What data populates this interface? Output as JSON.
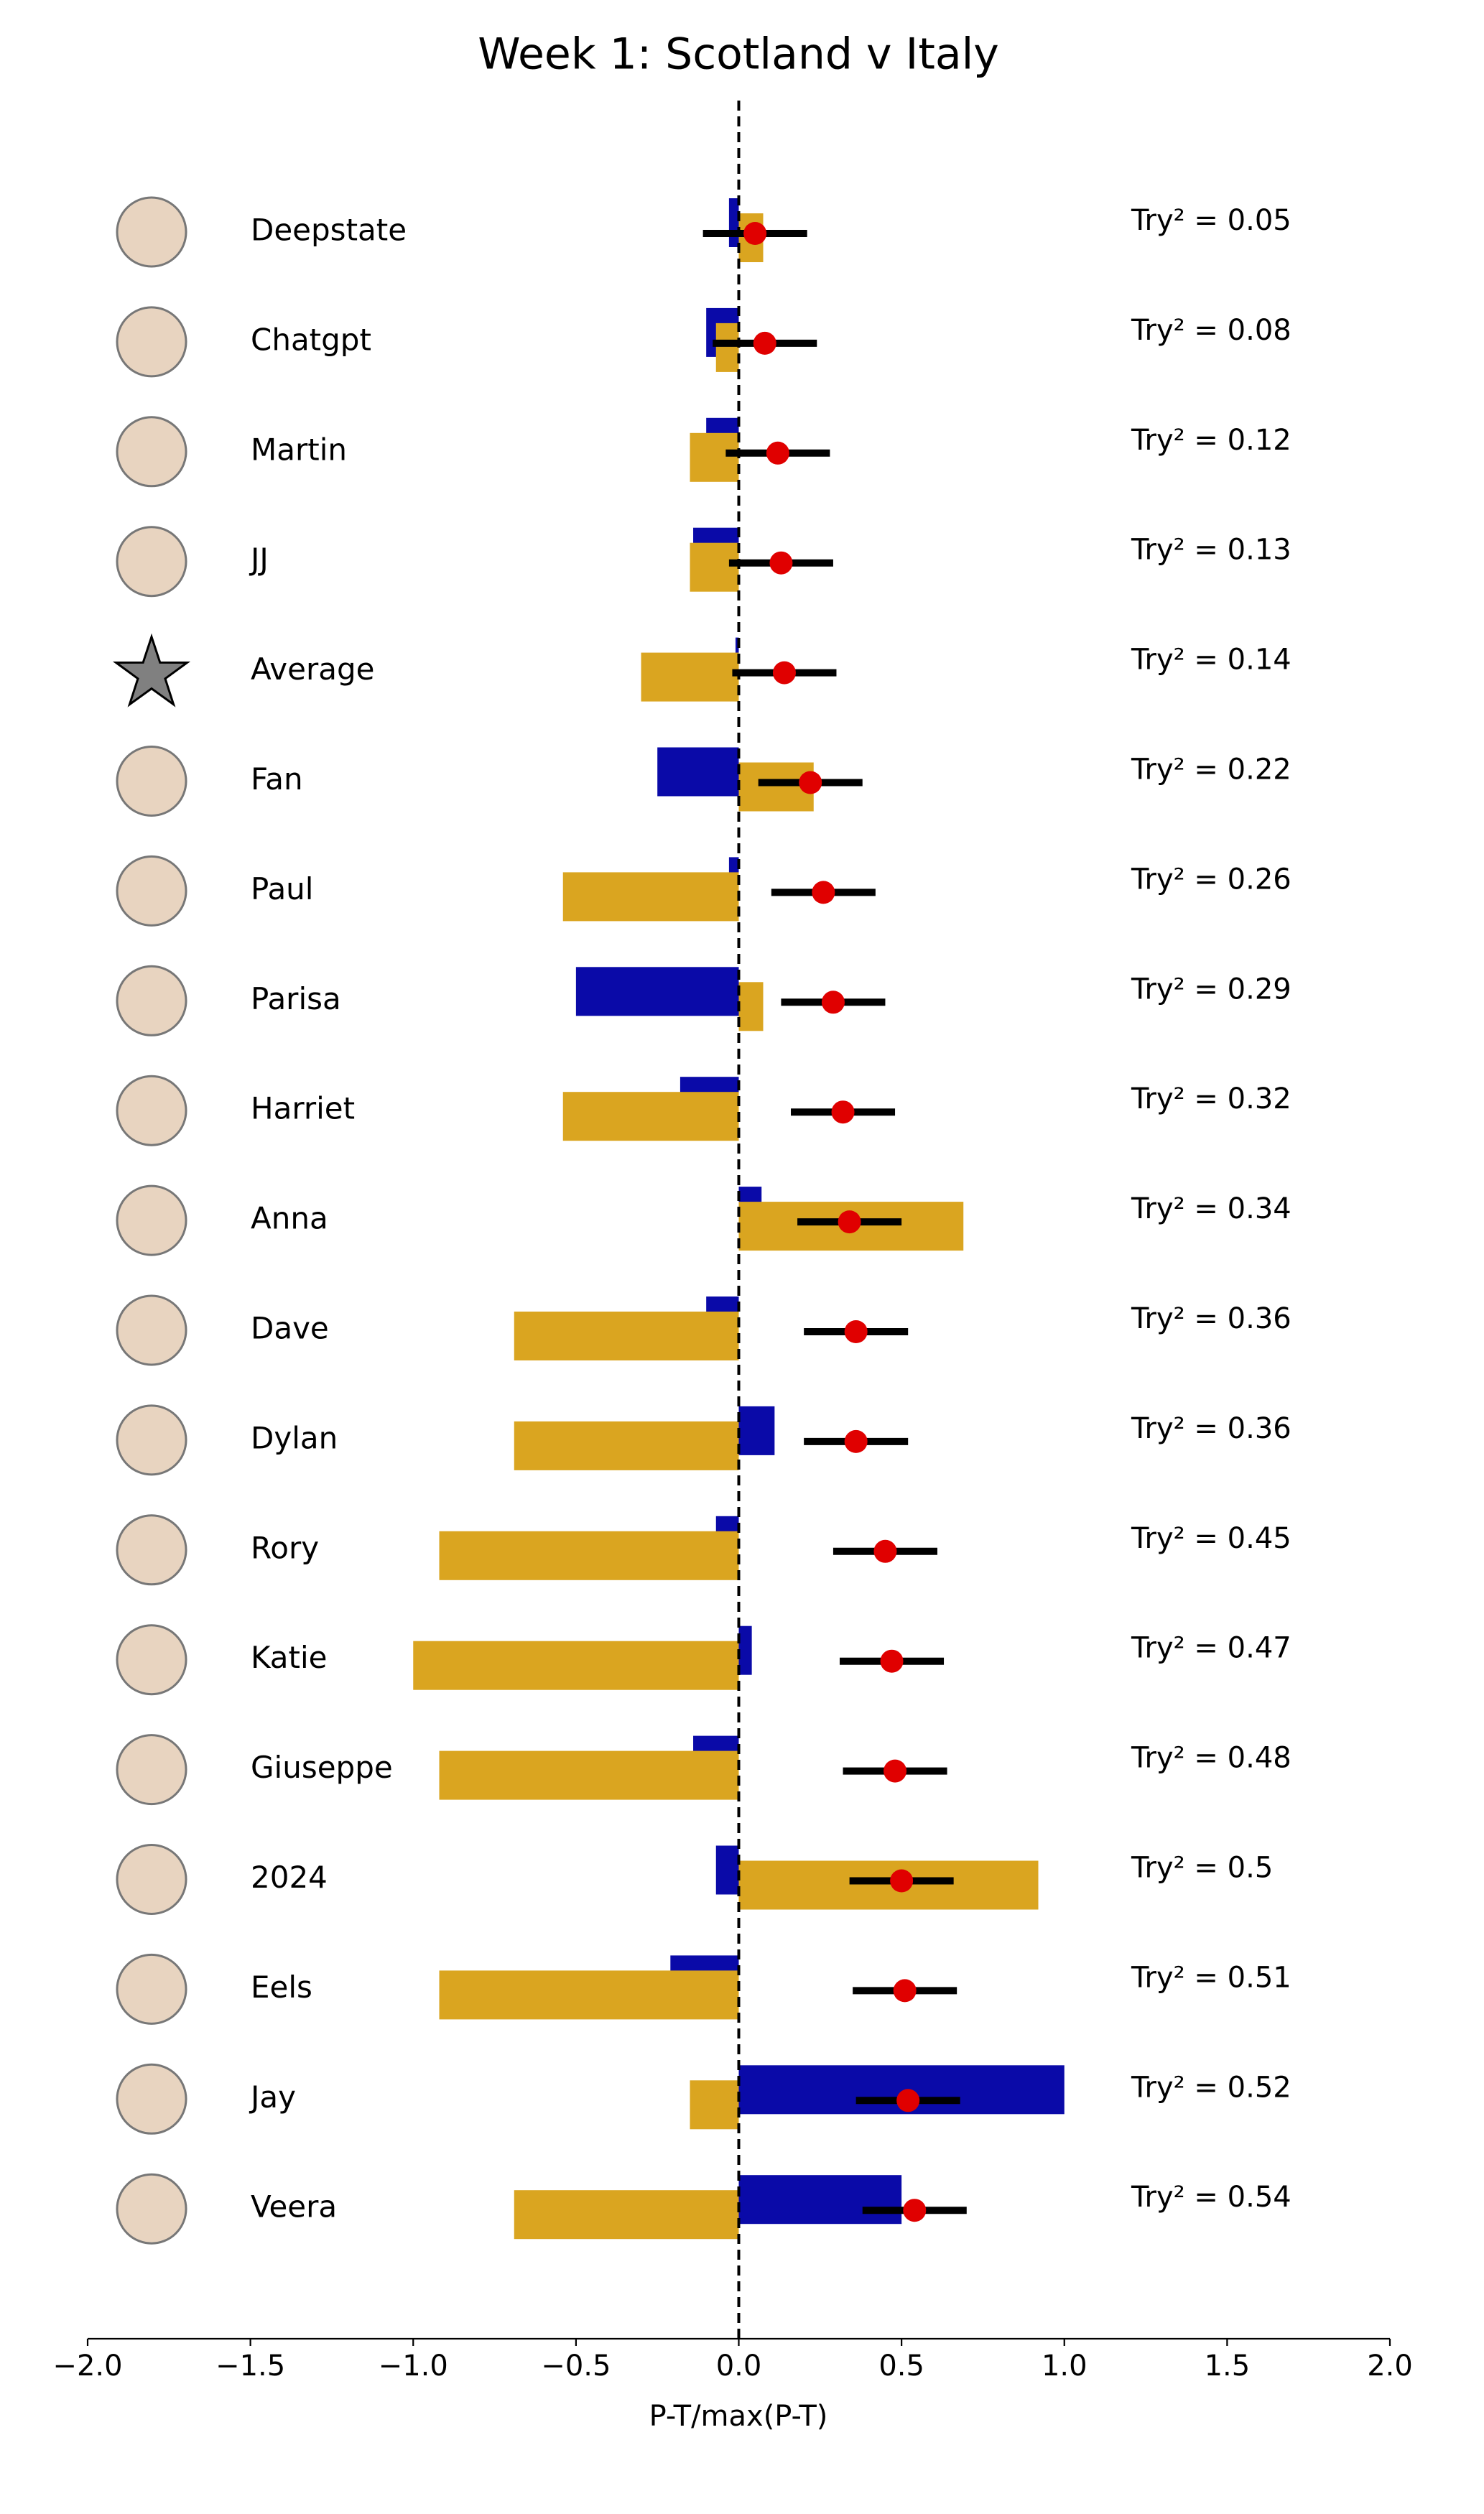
{
  "chart_data": {
    "type": "bar",
    "title": "Week 1: Scotland v Italy",
    "xlabel": "P-T/max(P-T)",
    "categories": [
      "Deepstate",
      "Chatgpt",
      "Martin",
      "JJ",
      "Average",
      "Fan",
      "Paul",
      "Parisa",
      "Harriet",
      "Anna",
      "Dave",
      "Dylan",
      "Rory",
      "Katie",
      "Giuseppe",
      "2024",
      "Eels",
      "Jay",
      "Veera"
    ],
    "series": [
      {
        "color": "#0a0aa8",
        "values": [
          -0.03,
          -0.1,
          -0.1,
          -0.14,
          -0.01,
          -0.25,
          -0.03,
          -0.5,
          -0.18,
          0.07,
          -0.1,
          0.11,
          -0.07,
          0.04,
          -0.14,
          -0.07,
          -0.21,
          1.0,
          0.5
        ]
      },
      {
        "color": "#daa520",
        "values": [
          0.075,
          -0.07,
          -0.15,
          -0.15,
          -0.3,
          0.23,
          -0.54,
          0.075,
          -0.54,
          0.69,
          -0.69,
          -0.69,
          -0.92,
          -1.0,
          -0.92,
          0.92,
          -0.92,
          -0.15,
          -0.69
        ]
      }
    ],
    "points": {
      "color": "#e00000",
      "error_color": "#000000",
      "values": [
        0.05,
        0.08,
        0.12,
        0.13,
        0.14,
        0.22,
        0.26,
        0.29,
        0.32,
        0.34,
        0.36,
        0.36,
        0.45,
        0.47,
        0.48,
        0.5,
        0.51,
        0.52,
        0.54
      ],
      "errors": [
        0.16,
        0.16,
        0.16,
        0.16,
        0.16,
        0.16,
        0.16,
        0.16,
        0.16,
        0.16,
        0.16,
        0.16,
        0.16,
        0.16,
        0.16,
        0.16,
        0.16,
        0.16,
        0.16
      ],
      "value_labels": [
        "Try² = 0.05",
        "Try² = 0.08",
        "Try² = 0.12",
        "Try² = 0.13",
        "Try² = 0.14",
        "Try² = 0.22",
        "Try² = 0.26",
        "Try² = 0.29",
        "Try² = 0.32",
        "Try² = 0.34",
        "Try² = 0.36",
        "Try² = 0.36",
        "Try² = 0.45",
        "Try² = 0.47",
        "Try² = 0.48",
        "Try² = 0.5",
        "Try² = 0.51",
        "Try² = 0.52",
        "Try² = 0.54"
      ]
    },
    "reference_line": 0,
    "xlim": [
      -2,
      2
    ],
    "xticks": [
      {
        "value": -2,
        "label": "−2.0"
      },
      {
        "value": -1.5,
        "label": "−1.5"
      },
      {
        "value": -1,
        "label": "−1.0"
      },
      {
        "value": -0.5,
        "label": "−0.5"
      },
      {
        "value": 0,
        "label": "0.0"
      },
      0.5,
      {
        "value": 1,
        "label": "1.0"
      },
      1.5,
      {
        "value": 2,
        "label": "2.0"
      }
    ]
  }
}
